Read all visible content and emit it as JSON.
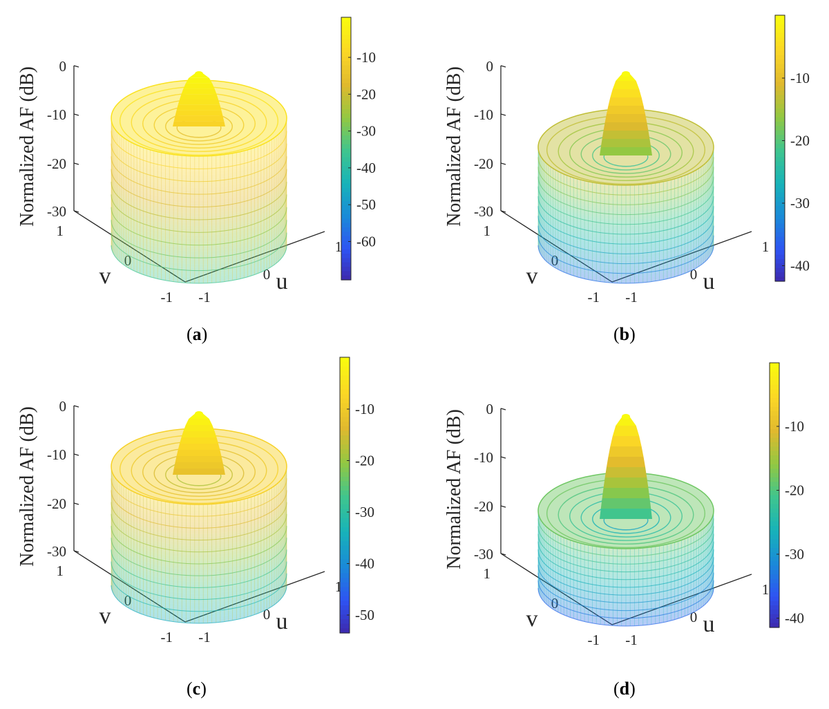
{
  "figure": {
    "panels": [
      {
        "caption_letter": "a",
        "zlabel": "Normalized AF (dB)",
        "u_label": "u",
        "v_label": "v",
        "z_ticks": [
          "0",
          "-10",
          "-20",
          "-30"
        ],
        "u_ticks": [
          "-1",
          "0",
          "1"
        ],
        "v_ticks": [
          "-1",
          "0",
          "1"
        ],
        "colorbar_ticks": [
          "-10",
          "-20",
          "-30",
          "-40",
          "-50",
          "-60"
        ]
      },
      {
        "caption_letter": "b",
        "zlabel": "Normalized AF (dB)",
        "u_label": "u",
        "v_label": "v",
        "z_ticks": [
          "0",
          "-10",
          "-20",
          "-30"
        ],
        "u_ticks": [
          "-1",
          "0",
          "1"
        ],
        "v_ticks": [
          "-1",
          "0",
          "1"
        ],
        "colorbar_ticks": [
          "-10",
          "-20",
          "-30",
          "-40"
        ]
      },
      {
        "caption_letter": "c",
        "zlabel": "Normalized AF (dB)",
        "u_label": "u",
        "v_label": "v",
        "z_ticks": [
          "0",
          "-10",
          "-20",
          "-30"
        ],
        "u_ticks": [
          "-1",
          "0",
          "1"
        ],
        "v_ticks": [
          "-1",
          "0",
          "1"
        ],
        "colorbar_ticks": [
          "-10",
          "-20",
          "-30",
          "-40",
          "-50"
        ]
      },
      {
        "caption_letter": "d",
        "zlabel": "Normalized AF (dB)",
        "u_label": "u",
        "v_label": "v",
        "z_ticks": [
          "0",
          "-10",
          "-20",
          "-30"
        ],
        "u_ticks": [
          "-1",
          "0",
          "1"
        ],
        "v_ticks": [
          "-1",
          "0",
          "1"
        ],
        "colorbar_ticks": [
          "-10",
          "-20",
          "-30",
          "-40"
        ]
      }
    ]
  },
  "chart_data": [
    {
      "type": "surface",
      "panel": "a",
      "zlabel": "Normalized AF (dB)",
      "xlabel": "u",
      "ylabel": "v",
      "xlim": [
        -1,
        1
      ],
      "ylim": [
        -1,
        1
      ],
      "zlim": [
        -35,
        0
      ],
      "colormap": "parula",
      "clim": [
        -68,
        0
      ],
      "main_lobe_peak_db": 0,
      "sidelobe_shell_level_db": -6,
      "floor_db": -35
    },
    {
      "type": "surface",
      "panel": "b",
      "zlabel": "Normalized AF (dB)",
      "xlabel": "u",
      "ylabel": "v",
      "xlim": [
        -1,
        1
      ],
      "ylim": [
        -1,
        1
      ],
      "zlim": [
        -35,
        0
      ],
      "colormap": "parula",
      "clim": [
        -43,
        0
      ],
      "main_lobe_peak_db": 0,
      "sidelobe_shell_level_db": -13,
      "floor_db": -35
    },
    {
      "type": "surface",
      "panel": "c",
      "zlabel": "Normalized AF (dB)",
      "xlabel": "u",
      "ylabel": "v",
      "xlim": [
        -1,
        1
      ],
      "ylim": [
        -1,
        1
      ],
      "zlim": [
        -35,
        0
      ],
      "colormap": "parula",
      "clim": [
        -54,
        0
      ],
      "main_lobe_peak_db": 0,
      "sidelobe_shell_level_db": -8,
      "floor_db": -35
    },
    {
      "type": "surface",
      "panel": "d",
      "zlabel": "Normalized AF (dB)",
      "xlabel": "u",
      "ylabel": "v",
      "xlim": [
        -1,
        1
      ],
      "ylim": [
        -1,
        1
      ],
      "zlim": [
        -35,
        0
      ],
      "colormap": "parula",
      "clim": [
        -42,
        0
      ],
      "main_lobe_peak_db": 0,
      "sidelobe_shell_level_db": -18,
      "floor_db": -35
    }
  ],
  "colors": {
    "axis": "#262626",
    "background": "#ffffff",
    "parula": [
      "#3e26a8",
      "#2e53f3",
      "#1a8ad8",
      "#17b3b9",
      "#3fc58e",
      "#93c842",
      "#e0b92e",
      "#fbd726",
      "#f9fb0e"
    ]
  }
}
